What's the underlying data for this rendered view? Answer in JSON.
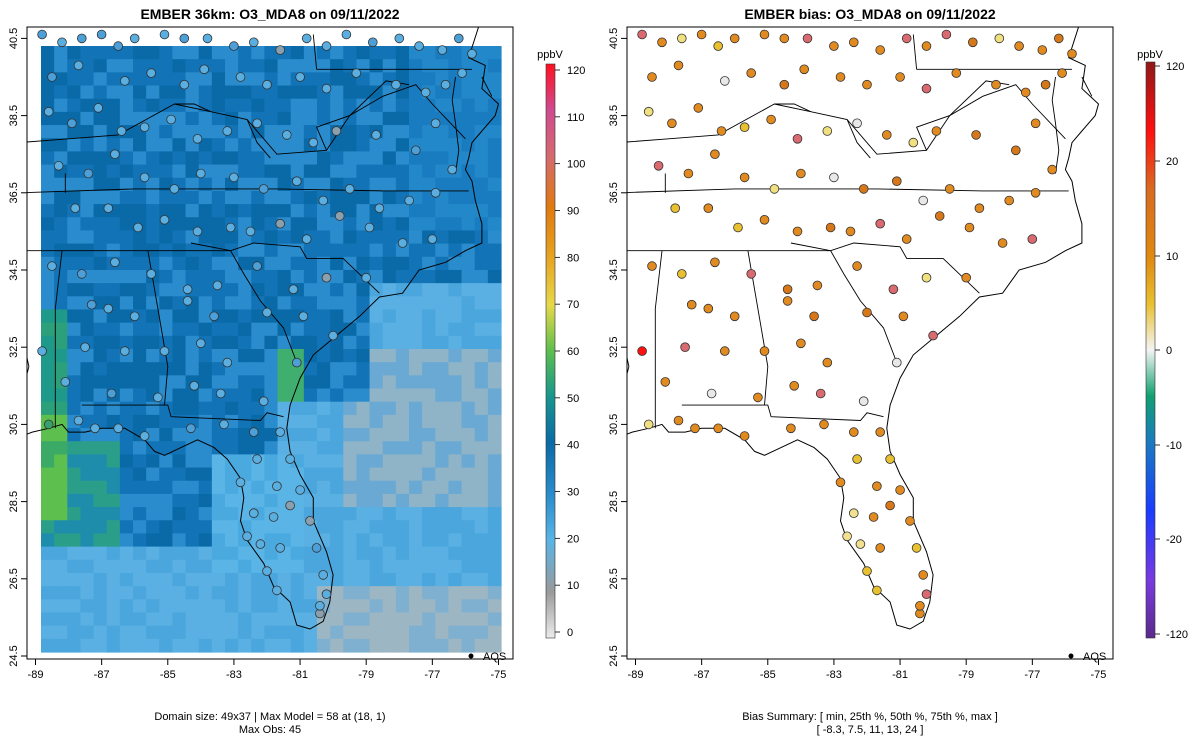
{
  "left_panel": {
    "title": "EMBER 36km: O3_MDA8 on 09/11/2022",
    "footer_line1": "Domain size: 49x37 | Max Model = 58 at (18, 1)",
    "footer_line2": "Max Obs: 45",
    "legend_label": "AQS",
    "colorbar_unit": "ppbV",
    "colorbar_ticks": [
      "0",
      "10",
      "20",
      "30",
      "40",
      "50",
      "60",
      "70",
      "80",
      "90",
      "100",
      "110",
      "120"
    ]
  },
  "right_panel": {
    "title": "EMBER bias: O3_MDA8 on 09/11/2022",
    "footer_line1": "Bias Summary: [ min, 25th %, 50th %, 75th %, max ]",
    "footer_line2": "[ -8.3,   7.5,   11,   13,   24 ]",
    "legend_label": "AQS",
    "colorbar_unit": "ppbV",
    "colorbar_ticks": [
      "120",
      "20",
      "10",
      "0",
      "-10",
      "-20",
      "-120"
    ]
  },
  "axes": {
    "x_ticks": [
      "-89",
      "-87",
      "-85",
      "-83",
      "-81",
      "-79",
      "-77",
      "-75"
    ],
    "y_ticks": [
      "40.5",
      "38.5",
      "36.5",
      "34.5",
      "32.5",
      "30.5",
      "28.5",
      "26.5",
      "24.5"
    ],
    "lon_range": [
      -89.2,
      -74.8
    ],
    "lat_range": [
      24.5,
      40.8
    ]
  },
  "colors": {
    "model_scale": [
      "#e8e8e8",
      "#9e9e9e",
      "#5ab4e6",
      "#1a7bc0",
      "#006aa8",
      "#1f9d8a",
      "#5cbf4e",
      "#e6d94a",
      "#e0a020",
      "#e07a10",
      "#d04a80",
      "#ff1020"
    ],
    "bias_scale": [
      "#6a2c9a",
      "#1a3cff",
      "#1a7bc0",
      "#10a070",
      "#f0f0f0",
      "#e8c030",
      "#e08a10",
      "#ff1010",
      "#a01818"
    ],
    "obs_left": "#5aaee0",
    "bias_typical": "#e08a20"
  },
  "chart_data": [
    {
      "type": "heatmap",
      "title": "EMBER 36km: O3_MDA8 on 09/11/2022",
      "variable": "O3_MDA8",
      "units": "ppbV",
      "domain_size": "49x37",
      "max_model": 58,
      "max_model_cell": [
        18,
        1
      ],
      "max_obs": 45,
      "xlim": [
        -89,
        -75
      ],
      "ylim": [
        24.5,
        40.5
      ],
      "colorbar_range": [
        0,
        120
      ],
      "legend": "AQS"
    },
    {
      "type": "scatter",
      "title": "EMBER bias: O3_MDA8 on 09/11/2022",
      "variable": "O3_MDA8 bias",
      "units": "ppbV",
      "bias_summary": {
        "min": -8.3,
        "p25": 7.5,
        "p50": 11,
        "p75": 13,
        "max": 24
      },
      "xlim": [
        -89,
        -75
      ],
      "ylim": [
        24.5,
        40.5
      ],
      "colorbar_range": [
        -120,
        120
      ],
      "legend": "AQS"
    }
  ]
}
